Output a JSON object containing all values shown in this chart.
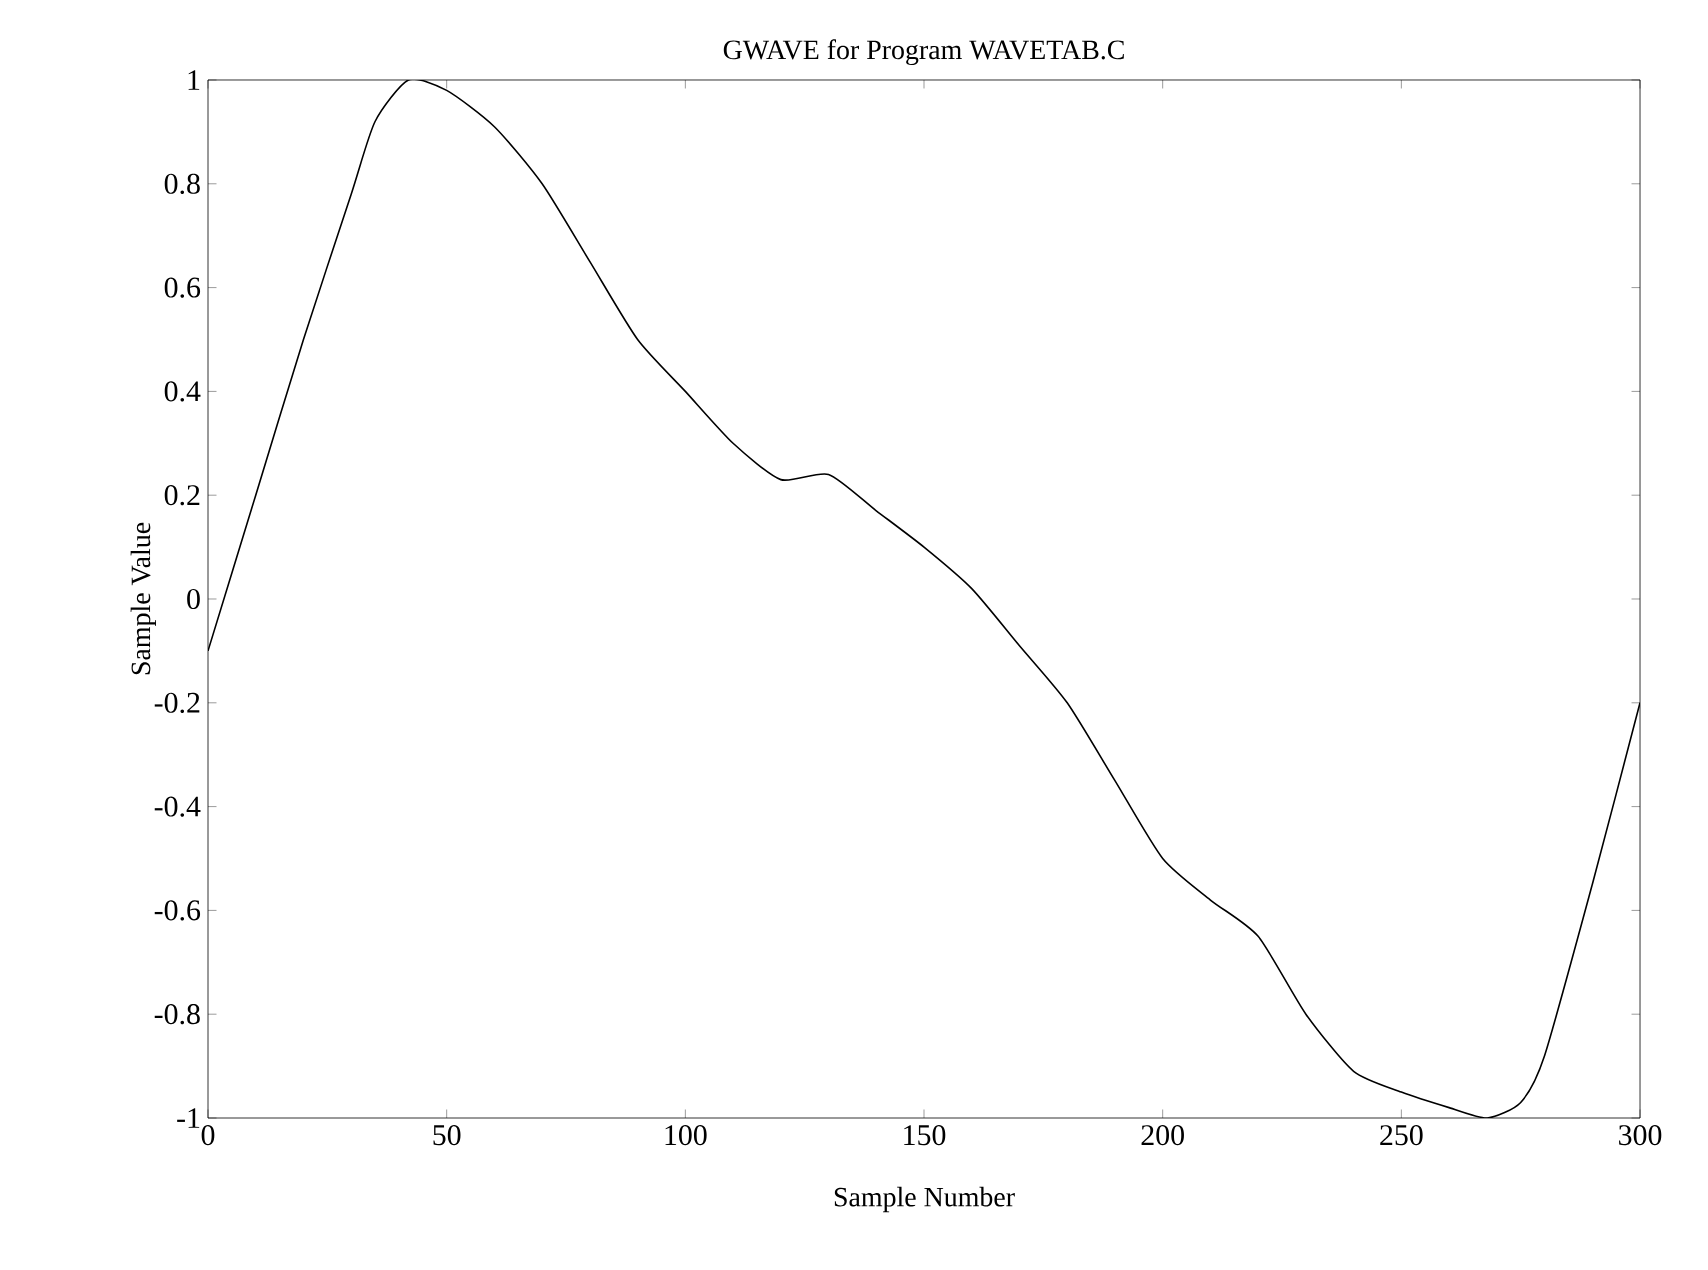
{
  "chart_data": {
    "type": "line",
    "title": "GWAVE for Program WAVETAB.C",
    "xlabel": "Sample Number",
    "ylabel": "Sample Value",
    "x": [
      0,
      10,
      20,
      30,
      35,
      42,
      50,
      60,
      70,
      80,
      90,
      100,
      110,
      120,
      130,
      140,
      150,
      160,
      170,
      180,
      190,
      200,
      210,
      220,
      230,
      240,
      250,
      260,
      268,
      275,
      280,
      290,
      300
    ],
    "series": [
      {
        "color": "#000000",
        "values": [
          -0.1,
          0.2,
          0.5,
          0.78,
          0.92,
          1.0,
          0.98,
          0.91,
          0.8,
          0.65,
          0.5,
          0.4,
          0.3,
          0.23,
          0.24,
          0.17,
          0.1,
          0.02,
          -0.09,
          -0.2,
          -0.35,
          -0.5,
          -0.58,
          -0.65,
          -0.8,
          -0.91,
          -0.95,
          -0.98,
          -1.0,
          -0.97,
          -0.88,
          -0.55,
          -0.2
        ]
      }
    ],
    "xlim": [
      0,
      300
    ],
    "ylim": [
      -1,
      1
    ],
    "xticks": [
      0,
      50,
      100,
      150,
      200,
      250,
      300
    ],
    "yticks": [
      -1,
      -0.8,
      -0.6,
      -0.4,
      -0.2,
      0,
      0.2,
      0.4,
      0.6,
      0.8,
      1
    ],
    "grid": false,
    "marker": "none",
    "line_style": "solid"
  }
}
